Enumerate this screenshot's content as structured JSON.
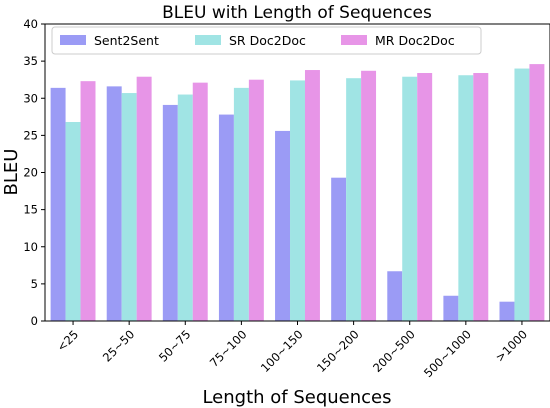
{
  "chart_data": {
    "type": "bar",
    "title": "BLEU with Length of Sequences",
    "xlabel": "Length of Sequences",
    "ylabel": "BLEU",
    "ylim": [
      0,
      40
    ],
    "yticks": [
      0,
      5,
      10,
      15,
      20,
      25,
      30,
      35,
      40
    ],
    "grid": false,
    "legend_position": "top",
    "categories": [
      "<25",
      "25~50",
      "50~75",
      "75~100",
      "100~150",
      "150~200",
      "200~500",
      "500~1000",
      ">1000"
    ],
    "series": [
      {
        "name": "Sent2Sent",
        "color": "#9b9bf5",
        "values": [
          31.4,
          31.6,
          29.1,
          27.8,
          25.6,
          19.3,
          6.7,
          3.4,
          2.6
        ]
      },
      {
        "name": "SR Doc2Doc",
        "color": "#a0e4e4",
        "values": [
          26.8,
          30.7,
          30.5,
          31.4,
          32.4,
          32.7,
          32.9,
          33.1,
          34.0
        ]
      },
      {
        "name": "MR Doc2Doc",
        "color": "#e795e7",
        "values": [
          32.3,
          32.9,
          32.1,
          32.5,
          33.8,
          33.7,
          33.4,
          33.4,
          34.6
        ]
      }
    ]
  }
}
